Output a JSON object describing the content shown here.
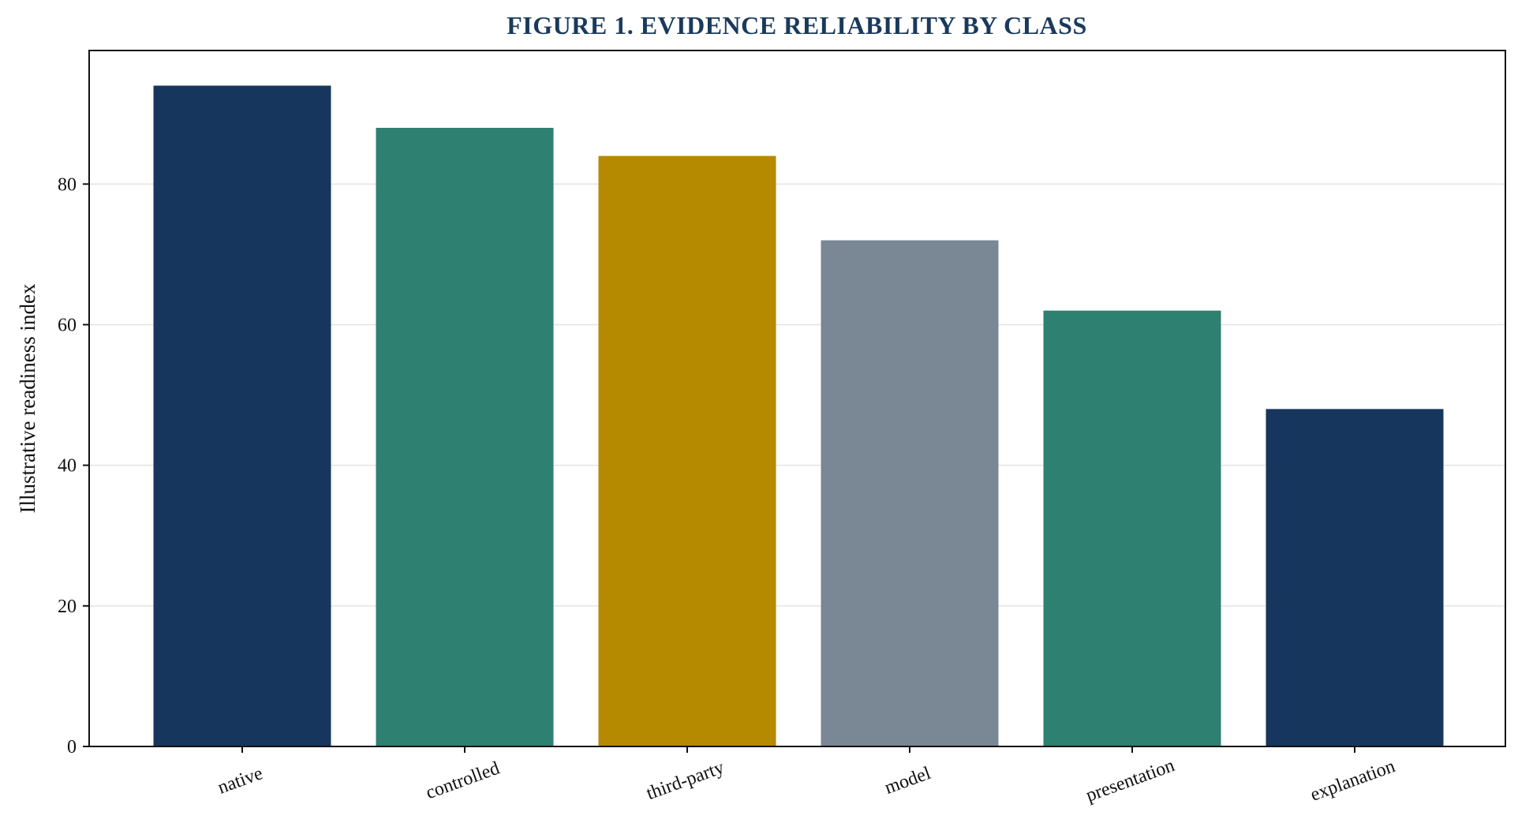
{
  "chart_data": {
    "type": "bar",
    "title": "FIGURE 1. EVIDENCE RELIABILITY BY CLASS",
    "xlabel": "",
    "ylabel": "Illustrative readiness index",
    "categories": [
      "native",
      "controlled",
      "third-party",
      "model",
      "presentation",
      "explanation"
    ],
    "values": [
      94,
      88,
      84,
      72,
      62,
      48
    ],
    "colors": [
      "#17365d",
      "#2e8070",
      "#b58900",
      "#7a8794",
      "#2e8070",
      "#17365d"
    ],
    "ylim": [
      0,
      99
    ],
    "yticks": [
      0,
      20,
      40,
      60,
      80
    ],
    "grid": "horizontal",
    "legend": "none"
  }
}
